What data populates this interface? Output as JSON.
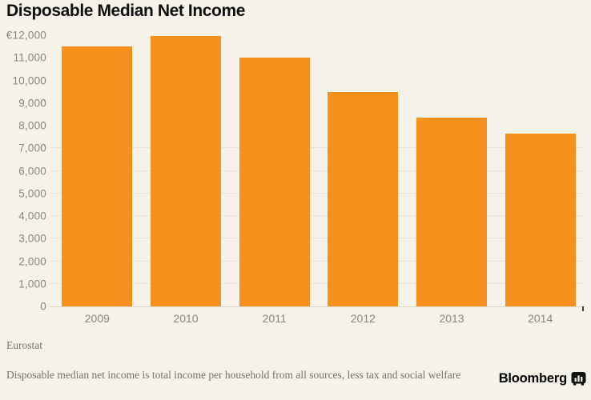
{
  "title": "Disposable Median Net Income",
  "source": "Eurostat",
  "footnote": "Disposable median net income is total income per household from all sources, less tax and social welfare",
  "branding": {
    "name": "Bloomberg",
    "icon": "bloomberg-terminal-icon"
  },
  "colors": {
    "background": "#F5F3E9",
    "bar": "#F7901D",
    "title": "#0E0E0E",
    "axis_label": "#868680",
    "gridline": "#E7E4D8",
    "baseline": "#DAD7C9",
    "tick_mark": "#3E3E3E",
    "footnote": "#73726A"
  },
  "chart_data": {
    "type": "bar",
    "categories": [
      "2009",
      "2010",
      "2011",
      "2012",
      "2013",
      "2014"
    ],
    "values": [
      11500,
      11950,
      11000,
      9500,
      8350,
      7650
    ],
    "title": "Disposable Median Net Income",
    "xlabel": "",
    "ylabel": "",
    "ylim": [
      0,
      12000
    ],
    "y_tick_interval": 1000,
    "y_tick_labels_top_to_bottom": [
      "€12,000",
      "11,000",
      "10,000",
      "9,000",
      "8,000",
      "7,000",
      "6,000",
      "5,000",
      "4,000",
      "3,000",
      "2,000",
      "1,000",
      "0"
    ],
    "gridlines_at": [
      1000,
      2000,
      3000,
      4000,
      5000,
      6000,
      7000
    ],
    "grid": true,
    "legend": false,
    "unit": "EUR"
  }
}
